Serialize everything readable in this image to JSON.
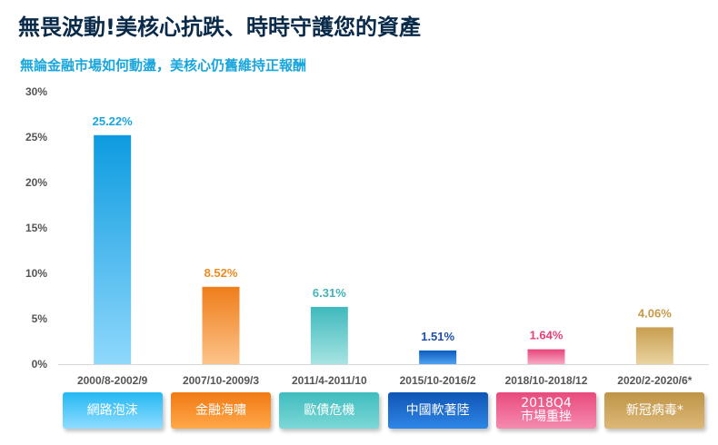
{
  "header": {
    "title": "無畏波動!美核心抗跌、時時守護您的資產",
    "subtitle": "無論金融市場如何動盪，美核心仍舊維持正報酬"
  },
  "colors": {
    "title": "#0a2a4a",
    "subtitle": "#19a6dc",
    "axis": "#555555",
    "baseline": "#d8d8d8"
  },
  "chart_data": {
    "type": "bar",
    "categories": [
      "2000/8-2002/9",
      "2007/10-2009/3",
      "2011/4-2011/10",
      "2015/10-2016/2",
      "2018/10-2018/12",
      "2020/2-2020/6*"
    ],
    "values": [
      25.22,
      8.52,
      6.31,
      1.51,
      1.64,
      4.06
    ],
    "value_labels": [
      "25.22%",
      "8.52%",
      "6.31%",
      "1.51%",
      "1.64%",
      "4.06%"
    ],
    "yticks": [
      "0%",
      "5%",
      "10%",
      "15%",
      "20%",
      "25%",
      "30%"
    ],
    "ylim": [
      0,
      30
    ],
    "grid": false,
    "bar_colors": [
      [
        "#0d9be0",
        "#8fd8fc"
      ],
      [
        "#ef7d1a",
        "#fcc48a"
      ],
      [
        "#3fb9bd",
        "#a6e4e2"
      ],
      [
        "#0c5bbf",
        "#4ea2f0"
      ],
      [
        "#e8457a",
        "#f7a9c4"
      ],
      [
        "#c89e50",
        "#ead3a0"
      ]
    ],
    "label_colors": [
      "#19a6dc",
      "#ee8a1e",
      "#44b4b8",
      "#1f4fa8",
      "#e5407a",
      "#c69a48"
    ]
  },
  "events": [
    {
      "label": "網路泡沫",
      "colors": [
        "#24b8f2",
        "#8fdcff"
      ]
    },
    {
      "label": "金融海嘯",
      "colors": [
        "#f07a14",
        "#ffa84a"
      ]
    },
    {
      "label": "歐債危機",
      "colors": [
        "#3fbcbf",
        "#7dd8d6"
      ]
    },
    {
      "label": "中國軟著陸",
      "colors": [
        "#0e55b5",
        "#2f86e6"
      ]
    },
    {
      "label": "2018Q4\n市場重挫",
      "colors": [
        "#e84a7c",
        "#f58bb0"
      ]
    },
    {
      "label": "新冠病毒*",
      "colors": [
        "#bf9448",
        "#dcb877"
      ]
    }
  ]
}
